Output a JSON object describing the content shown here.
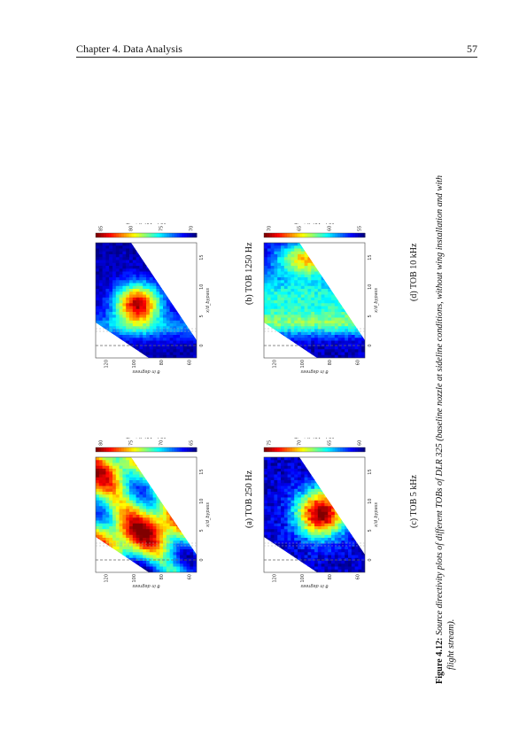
{
  "header": {
    "chapter": "Chapter 4.  Data Analysis",
    "page": "57"
  },
  "caption": {
    "label": "Figure 4.12:",
    "line1": "Source directivity plots of different TOBs of DLR 325 (baseline nozzle at sideline conditions, without wing installation and with",
    "line2": "flight stream)."
  },
  "axes": {
    "ylabel": "θ in degrees",
    "xlabel": "x/d_bypass",
    "colorbar_label": "10 log10(p²) in dB",
    "y_ticks": [
      "60",
      "80",
      "100",
      "120"
    ],
    "x_ticks": [
      "0",
      "5",
      "10",
      "15"
    ]
  },
  "panels": [
    {
      "id": "a",
      "label": "(a) TOB 250 Hz",
      "cbar_ticks": [
        "80",
        "75",
        "70",
        "65"
      ]
    },
    {
      "id": "b",
      "label": "(b) TOB 1250 Hz",
      "cbar_ticks": [
        "85",
        "80",
        "75",
        "70"
      ]
    },
    {
      "id": "c",
      "label": "(c) TOB 5 kHz",
      "cbar_ticks": [
        "75",
        "70",
        "65",
        "60"
      ]
    },
    {
      "id": "d",
      "label": "(d) TOB 10 kHz",
      "cbar_ticks": [
        "70",
        "65",
        "60",
        "55"
      ]
    }
  ],
  "colors": {
    "low": "#00007f",
    "high": "#7f0000",
    "accent_dash": "#555555"
  }
}
